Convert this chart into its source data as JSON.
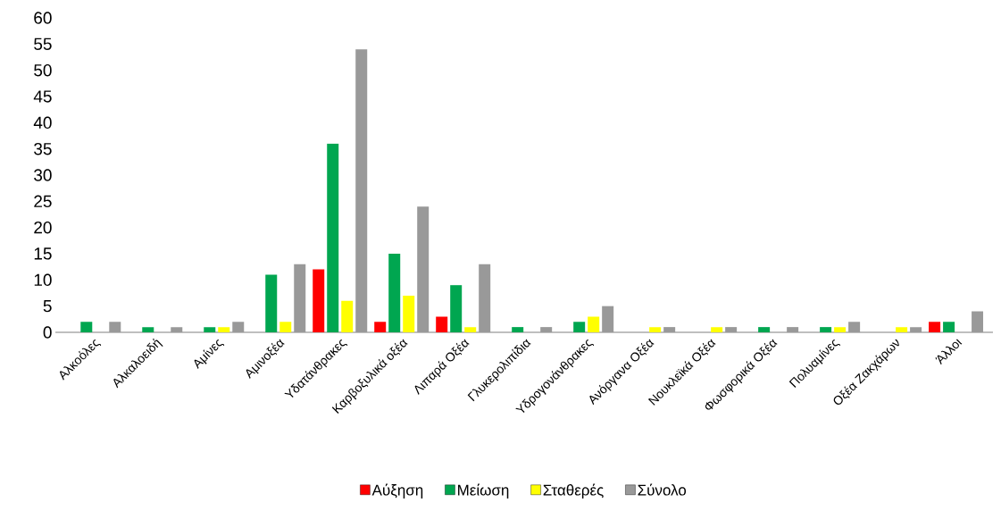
{
  "chart_data": {
    "type": "bar",
    "categories": [
      "Αλκοόλες",
      "Αλκαλοειδή",
      "Αμίνες",
      "Αμινοξέα",
      "Υδατάνθρακες",
      "Καρβοξυλικά οξέα",
      "Λιπαρά Οξέα",
      "Γλυκερολιπίδια",
      "Υδρογονάνθρακες",
      "Ανόργανα Οξέα",
      "Νουκλεϊκά Οξέα",
      "Φωσφορικά Οξέα",
      "Πολυαμίνες",
      "Οξέα Ζακχάρων",
      "Άλλοι"
    ],
    "series": [
      {
        "name": "Αύξηση",
        "color": "#ff0000",
        "values": [
          0,
          0,
          0,
          0,
          12,
          2,
          3,
          0,
          0,
          0,
          0,
          0,
          0,
          0,
          2
        ]
      },
      {
        "name": "Μείωση",
        "color": "#00a650",
        "values": [
          2,
          1,
          1,
          11,
          36,
          15,
          9,
          1,
          2,
          0,
          0,
          1,
          1,
          0,
          2
        ]
      },
      {
        "name": "Σταθερές",
        "color": "#ffff00",
        "values": [
          0,
          0,
          1,
          2,
          6,
          7,
          1,
          0,
          3,
          1,
          1,
          0,
          1,
          1,
          0
        ]
      },
      {
        "name": "Σύνολο",
        "color": "#999999",
        "values": [
          2,
          1,
          2,
          13,
          54,
          24,
          13,
          1,
          5,
          1,
          1,
          1,
          2,
          1,
          4
        ]
      }
    ],
    "ylim": [
      0,
      60
    ],
    "yticks": [
      0,
      5,
      10,
      15,
      20,
      25,
      30,
      35,
      40,
      45,
      50,
      55,
      60
    ],
    "grid": false,
    "legend": "bottom"
  }
}
